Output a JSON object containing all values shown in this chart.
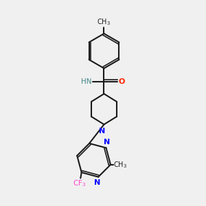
{
  "background_color": "#f0f0f0",
  "bond_color": "#1a1a1a",
  "nitrogen_color": "#0000ff",
  "oxygen_color": "#ff2200",
  "fluorine_color": "#ff44cc",
  "nh_color": "#448888",
  "methyl_top_label": "CH₃",
  "cf3_label": "CF₃",
  "methyl_bottom_label": "CH₃"
}
